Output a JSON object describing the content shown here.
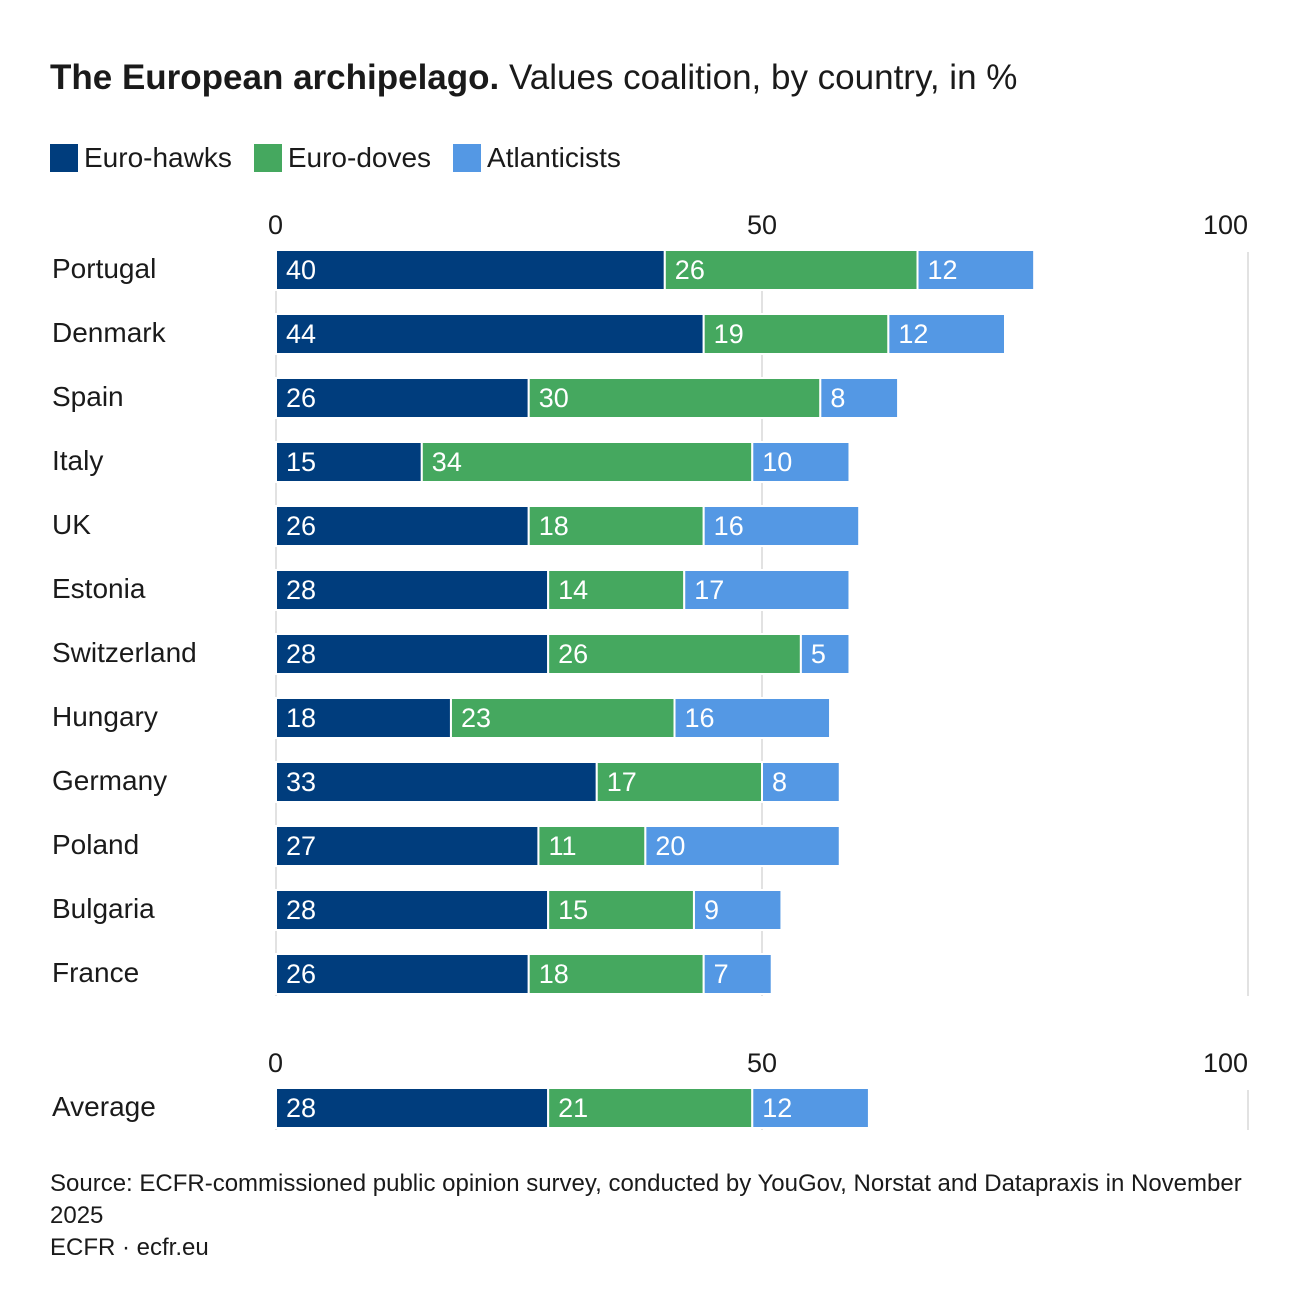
{
  "title": {
    "bold": "The European archipelago.",
    "rest": " Values coalition, by country, in %"
  },
  "legend": [
    {
      "name": "Euro-hawks",
      "color": "#003d7d"
    },
    {
      "name": "Euro-doves",
      "color": "#45a85f"
    },
    {
      "name": "Atlanticists",
      "color": "#5498e4"
    }
  ],
  "chart_data": [
    {
      "type": "bar",
      "orientation": "horizontal",
      "stacked": true,
      "xlim": [
        0,
        100
      ],
      "xticks": [
        0,
        50,
        100
      ],
      "grid": true,
      "categories": [
        "Portugal",
        "Denmark",
        "Spain",
        "Italy",
        "UK",
        "Estonia",
        "Switzerland",
        "Hungary",
        "Germany",
        "Poland",
        "Bulgaria",
        "France"
      ],
      "series": [
        {
          "name": "Euro-hawks",
          "values": [
            40,
            44,
            26,
            15,
            26,
            28,
            28,
            18,
            33,
            27,
            28,
            26
          ]
        },
        {
          "name": "Euro-doves",
          "values": [
            26,
            19,
            30,
            34,
            18,
            14,
            26,
            23,
            17,
            11,
            15,
            18
          ]
        },
        {
          "name": "Atlanticists",
          "values": [
            12,
            12,
            8,
            10,
            16,
            17,
            5,
            16,
            8,
            20,
            9,
            7
          ]
        }
      ]
    },
    {
      "type": "bar",
      "orientation": "horizontal",
      "stacked": true,
      "xlim": [
        0,
        100
      ],
      "xticks": [
        0,
        50,
        100
      ],
      "grid": true,
      "categories": [
        "Average"
      ],
      "series": [
        {
          "name": "Euro-hawks",
          "values": [
            28
          ]
        },
        {
          "name": "Euro-doves",
          "values": [
            21
          ]
        },
        {
          "name": "Atlanticists",
          "values": [
            12
          ]
        }
      ]
    }
  ],
  "footer": {
    "source": "Source: ECFR-commissioned public opinion survey, conducted by YouGov, Norstat and Datapraxis in November 2025",
    "credit": "ECFR · ecfr.eu"
  }
}
